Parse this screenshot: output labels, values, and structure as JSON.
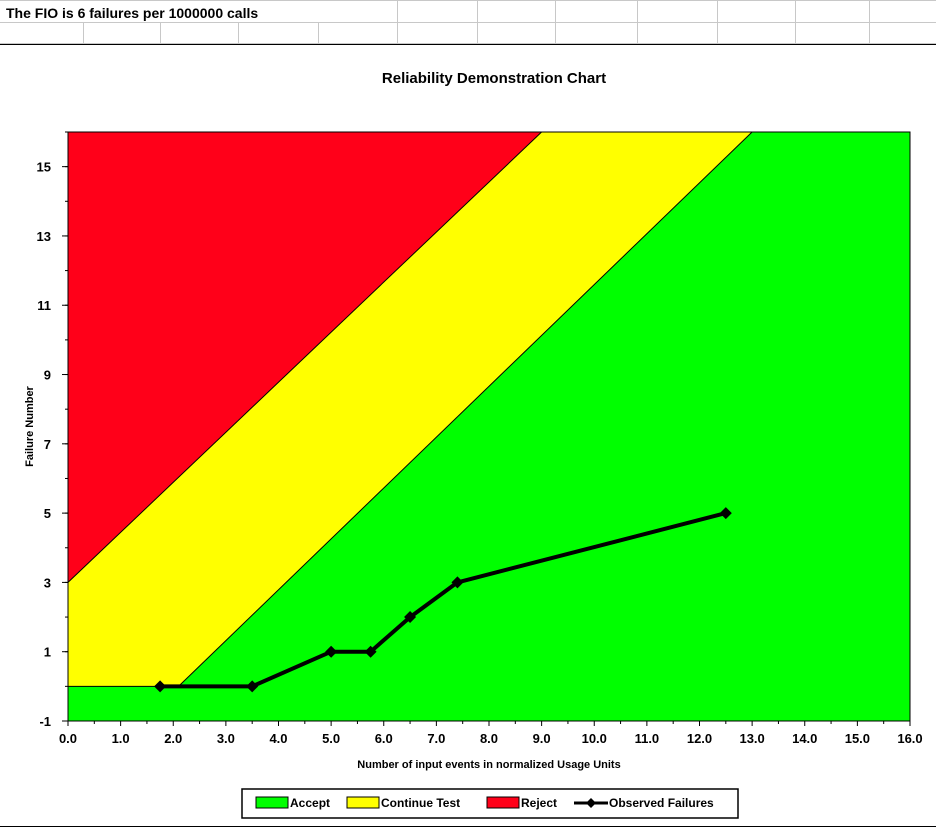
{
  "sheet": {
    "cell_text": "The FIO is 6 failures per 1000000 calls"
  },
  "chart_data": {
    "type": "area",
    "title": "Reliability Demonstration Chart",
    "xlabel": "Number of input events in normalized Usage Units",
    "ylabel": "Failure Number",
    "xlim": [
      0,
      16
    ],
    "ylim": [
      -1,
      16
    ],
    "x_ticks": [
      "0.0",
      "1.0",
      "2.0",
      "3.0",
      "4.0",
      "5.0",
      "6.0",
      "7.0",
      "8.0",
      "9.0",
      "10.0",
      "11.0",
      "12.0",
      "13.0",
      "14.0",
      "15.0",
      "16.0"
    ],
    "y_ticks": [
      "-1",
      "1",
      "3",
      "5",
      "7",
      "9",
      "11",
      "13",
      "15"
    ],
    "regions": [
      {
        "name": "Reject",
        "color": "#ff0019",
        "boundary": [
          [
            0,
            3
          ],
          [
            9.0,
            16
          ]
        ]
      },
      {
        "name": "Continue Test",
        "color": "#ffff00",
        "boundary": [
          [
            0,
            0
          ],
          [
            2.1,
            0
          ],
          [
            13.0,
            16
          ]
        ]
      },
      {
        "name": "Accept",
        "color": "#00ff00"
      }
    ],
    "series": [
      {
        "name": "Observed Failures",
        "color": "#000000",
        "x": [
          1.75,
          3.5,
          5.0,
          5.75,
          6.5,
          7.4,
          12.5
        ],
        "y": [
          0,
          0,
          1,
          1,
          2,
          3,
          5
        ]
      }
    ],
    "legend": {
      "position": "bottom",
      "items": [
        "Accept",
        "Continue Test",
        "Reject",
        "Observed Failures"
      ]
    },
    "grid": false
  }
}
